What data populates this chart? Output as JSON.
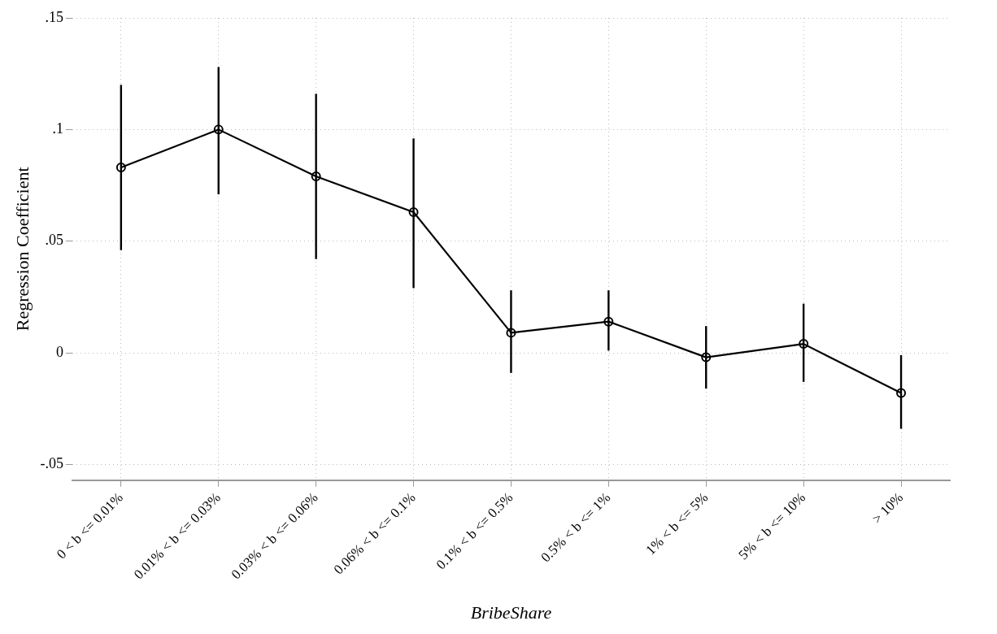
{
  "chart_data": {
    "type": "line",
    "xlabel": "BribeShare",
    "ylabel": "Regression Coefficient",
    "categories": [
      "0 < b <= 0.01%",
      "0.01% < b <= 0.03%",
      "0.03% < b <= 0.06%",
      "0.06% < b <= 0.1%",
      "0.1% < b <= 0.5%",
      "0.5% < b <= 1%",
      "1% < b <= 5%",
      "5% < b <= 10%",
      "> 10%"
    ],
    "series": [
      {
        "color": "#000000",
        "values": [
          0.083,
          0.1,
          0.079,
          0.063,
          0.009,
          0.014,
          -0.002,
          0.004,
          -0.018
        ],
        "errors": [
          [
            0.046,
            0.12
          ],
          [
            0.071,
            0.128
          ],
          [
            0.042,
            0.116
          ],
          [
            0.029,
            0.096
          ],
          [
            -0.009,
            0.028
          ],
          [
            0.001,
            0.028
          ],
          [
            -0.016,
            0.012
          ],
          [
            -0.013,
            0.022
          ],
          [
            -0.034,
            -0.001
          ]
        ]
      }
    ],
    "ylim": [
      -0.057,
      0.15
    ],
    "yticks": [
      {
        "value": -0.05,
        "label": "-.05"
      },
      {
        "value": 0,
        "label": "0"
      },
      {
        "value": 0.05,
        "label": ".05"
      },
      {
        "value": 0.1,
        "label": ".1"
      },
      {
        "value": 0.15,
        "label": ".15"
      }
    ],
    "grid": true,
    "legend": false,
    "marker": "circle",
    "line_style": "solid"
  }
}
